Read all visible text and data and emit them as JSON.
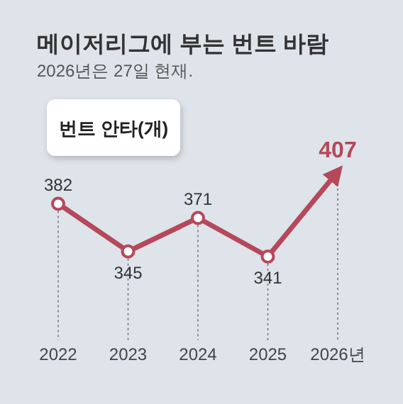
{
  "chart_data": {
    "type": "line",
    "title": "메이저리그에 부는 번트 바람",
    "subtitle": "2026년은 27일 현재.",
    "ylabel": "번트 안타(개)",
    "categories": [
      "2022",
      "2023",
      "2024",
      "2025",
      "2026년"
    ],
    "series": [
      {
        "color": "#b5485a",
        "values": [
          382,
          345,
          371,
          341,
          407
        ]
      }
    ],
    "data_labels": true,
    "marker": "circle",
    "grid": "x"
  }
}
